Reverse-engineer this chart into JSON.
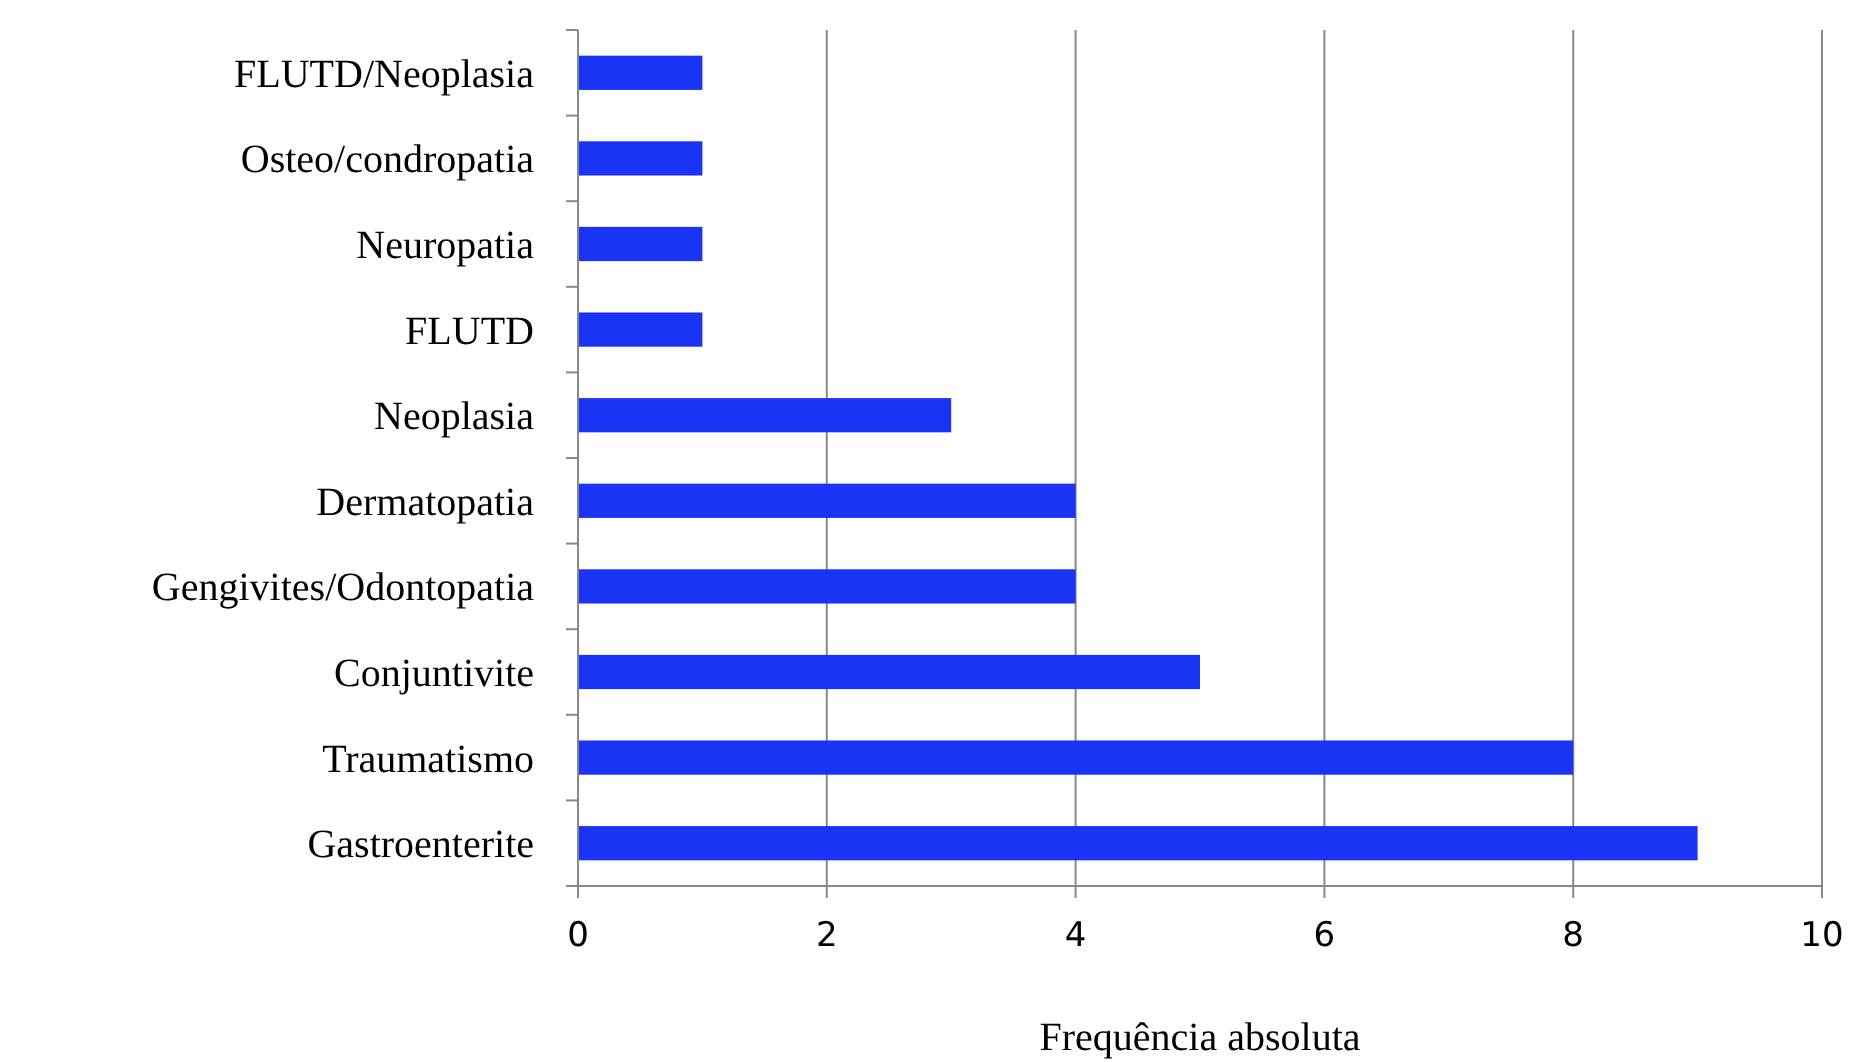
{
  "chart_data": {
    "type": "bar",
    "orientation": "horizontal",
    "xlabel": "Frequência absoluta",
    "categories": [
      "FLUTD/Neoplasia",
      "Osteo/condropatia",
      "Neuropatia",
      "FLUTD",
      "Neoplasia",
      "Dermatopatia",
      "Gengivites/Odontopatia",
      "Conjuntivite",
      "Traumatismo",
      "Gastroenterite"
    ],
    "values": [
      1,
      1,
      1,
      1,
      3,
      4,
      4,
      5,
      8,
      9
    ],
    "color": "#1a34f5",
    "xlim": [
      0,
      10
    ],
    "xticks": [
      0,
      2,
      4,
      6,
      8,
      10
    ],
    "grid": "x"
  }
}
